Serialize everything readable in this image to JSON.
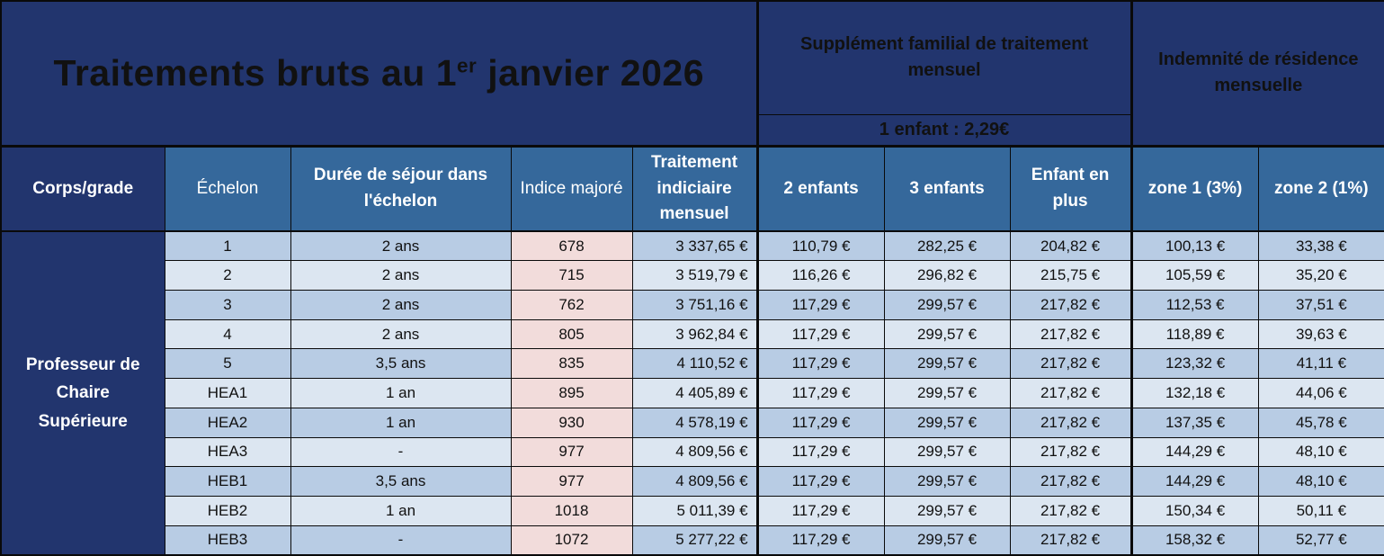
{
  "title": {
    "text_before_sup": "Traitements bruts au 1",
    "sup": "er",
    "text_after_sup": " janvier 2026"
  },
  "top_band": {
    "supplement_title": "Supplément familial de traitement mensuel",
    "supplement_one_child": "1 enfant : 2,29€",
    "indemnite_title": "Indemnité de résidence mensuelle"
  },
  "column_headers": {
    "corps_grade": "Corps/grade",
    "echelon": "Échelon",
    "duree": "Durée de séjour dans l'échelon",
    "indice": "Indice majoré",
    "traitement": "Traitement indiciaire mensuel",
    "enfants2": "2 enfants",
    "enfants3": "3 enfants",
    "enfant_plus": "Enfant en plus",
    "zone1": "zone 1 (3%)",
    "zone2": "zone 2 (1%)"
  },
  "group_label": "Professeur de Chaire Supérieure",
  "rows": [
    {
      "echelon": "1",
      "duree": "2 ans",
      "indice": "678",
      "traitement": "3 337,65 €",
      "enfants2": "110,79 €",
      "enfants3": "282,25 €",
      "enfant_plus": "204,82 €",
      "zone1": "100,13 €",
      "zone2": "33,38 €"
    },
    {
      "echelon": "2",
      "duree": "2 ans",
      "indice": "715",
      "traitement": "3 519,79 €",
      "enfants2": "116,26 €",
      "enfants3": "296,82 €",
      "enfant_plus": "215,75 €",
      "zone1": "105,59 €",
      "zone2": "35,20 €"
    },
    {
      "echelon": "3",
      "duree": "2 ans",
      "indice": "762",
      "traitement": "3 751,16 €",
      "enfants2": "117,29 €",
      "enfants3": "299,57 €",
      "enfant_plus": "217,82 €",
      "zone1": "112,53 €",
      "zone2": "37,51 €"
    },
    {
      "echelon": "4",
      "duree": "2 ans",
      "indice": "805",
      "traitement": "3 962,84 €",
      "enfants2": "117,29 €",
      "enfants3": "299,57 €",
      "enfant_plus": "217,82 €",
      "zone1": "118,89 €",
      "zone2": "39,63 €"
    },
    {
      "echelon": "5",
      "duree": "3,5 ans",
      "indice": "835",
      "traitement": "4 110,52 €",
      "enfants2": "117,29 €",
      "enfants3": "299,57 €",
      "enfant_plus": "217,82 €",
      "zone1": "123,32 €",
      "zone2": "41,11 €"
    },
    {
      "echelon": "HEA1",
      "duree": "1 an",
      "indice": "895",
      "traitement": "4 405,89 €",
      "enfants2": "117,29 €",
      "enfants3": "299,57 €",
      "enfant_plus": "217,82 €",
      "zone1": "132,18 €",
      "zone2": "44,06 €"
    },
    {
      "echelon": "HEA2",
      "duree": "1 an",
      "indice": "930",
      "traitement": "4 578,19 €",
      "enfants2": "117,29 €",
      "enfants3": "299,57 €",
      "enfant_plus": "217,82 €",
      "zone1": "137,35 €",
      "zone2": "45,78 €"
    },
    {
      "echelon": "HEA3",
      "duree": "-",
      "indice": "977",
      "traitement": "4 809,56 €",
      "enfants2": "117,29 €",
      "enfants3": "299,57 €",
      "enfant_plus": "217,82 €",
      "zone1": "144,29 €",
      "zone2": "48,10 €"
    },
    {
      "echelon": "HEB1",
      "duree": "3,5 ans",
      "indice": "977",
      "traitement": "4 809,56 €",
      "enfants2": "117,29 €",
      "enfants3": "299,57 €",
      "enfant_plus": "217,82 €",
      "zone1": "144,29 €",
      "zone2": "48,10 €"
    },
    {
      "echelon": "HEB2",
      "duree": "1 an",
      "indice": "1018",
      "traitement": "5 011,39 €",
      "enfants2": "117,29 €",
      "enfants3": "299,57 €",
      "enfant_plus": "217,82 €",
      "zone1": "150,34 €",
      "zone2": "50,11 €"
    },
    {
      "echelon": "HEB3",
      "duree": "-",
      "indice": "1072",
      "traitement": "5 277,22 €",
      "enfants2": "117,29 €",
      "enfants3": "299,57 €",
      "enfant_plus": "217,82 €",
      "zone1": "158,32 €",
      "zone2": "52,77 €"
    }
  ],
  "colors": {
    "navy": "#22356E",
    "steel_blue": "#35689B",
    "row_dark": "#B8CCE4",
    "row_light": "#DCE6F1",
    "indice_pink": "#F2DCDB",
    "border_black": "#0A0A0A",
    "header_text": "#FFFFFF",
    "data_text": "#111111"
  }
}
